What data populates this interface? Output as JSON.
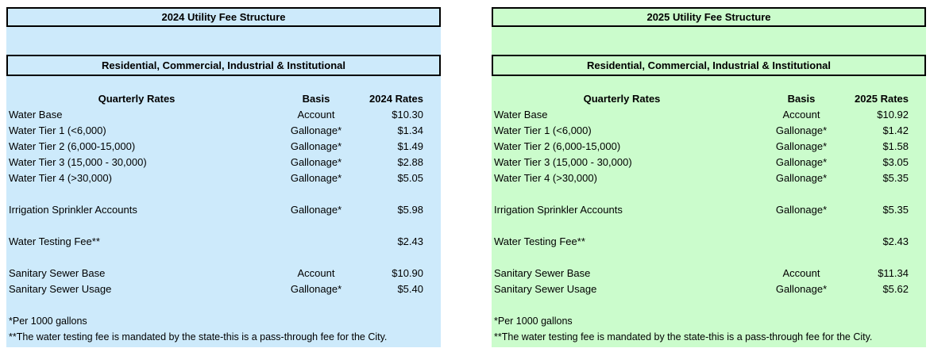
{
  "page": {
    "background_color": "#ffffff",
    "text_color": "#000000",
    "box_border_color": "#000000"
  },
  "tables": [
    {
      "title": "2024 Utility Fee Structure",
      "subtitle": "Residential, Commercial, Industrial & Institutional",
      "bg_color": "#CDEAFB",
      "columns": {
        "quarterly": "Quarterly Rates",
        "basis": "Basis",
        "rates": "2024 Rates"
      },
      "groups": [
        [
          {
            "label": "Water Base",
            "basis": "Account",
            "rate": "$10.30"
          },
          {
            "label": "Water Tier 1 (<6,000)",
            "basis": "Gallonage*",
            "rate": "$1.34"
          },
          {
            "label": "Water Tier 2 (6,000-15,000)",
            "basis": "Gallonage*",
            "rate": "$1.49"
          },
          {
            "label": "Water Tier 3 (15,000 - 30,000)",
            "basis": "Gallonage*",
            "rate": "$2.88"
          },
          {
            "label": "Water Tier 4 (>30,000)",
            "basis": "Gallonage*",
            "rate": "$5.05"
          }
        ],
        [
          {
            "label": "Irrigation Sprinkler Accounts",
            "basis": "Gallonage*",
            "rate": "$5.98"
          }
        ],
        [
          {
            "label": "Water Testing Fee**",
            "basis": "",
            "rate": "$2.43"
          }
        ],
        [
          {
            "label": "Sanitary Sewer Base",
            "basis": "Account",
            "rate": "$10.90"
          },
          {
            "label": "Sanitary Sewer Usage",
            "basis": "Gallonage*",
            "rate": "$5.40"
          }
        ]
      ],
      "footnotes": [
        "*Per 1000 gallons",
        "**The water testing fee is mandated by the state-this is a pass-through fee for the City."
      ]
    },
    {
      "title": "2025 Utility Fee Structure",
      "subtitle": "Residential, Commercial, Industrial & Institutional",
      "bg_color": "#CBFCCC",
      "columns": {
        "quarterly": "Quarterly Rates",
        "basis": "Basis",
        "rates": "2025 Rates"
      },
      "groups": [
        [
          {
            "label": "Water Base",
            "basis": "Account",
            "rate": "$10.92"
          },
          {
            "label": "Water Tier 1 (<6,000)",
            "basis": "Gallonage*",
            "rate": "$1.42"
          },
          {
            "label": "Water Tier 2 (6,000-15,000)",
            "basis": "Gallonage*",
            "rate": "$1.58"
          },
          {
            "label": "Water Tier 3 (15,000 - 30,000)",
            "basis": "Gallonage*",
            "rate": "$3.05"
          },
          {
            "label": "Water Tier 4 (>30,000)",
            "basis": "Gallonage*",
            "rate": "$5.35"
          }
        ],
        [
          {
            "label": "Irrigation Sprinkler Accounts",
            "basis": "Gallonage*",
            "rate": "$5.35"
          }
        ],
        [
          {
            "label": "Water Testing Fee**",
            "basis": "",
            "rate": "$2.43"
          }
        ],
        [
          {
            "label": "Sanitary Sewer Base",
            "basis": "Account",
            "rate": "$11.34"
          },
          {
            "label": "Sanitary Sewer Usage",
            "basis": "Gallonage*",
            "rate": "$5.62"
          }
        ]
      ],
      "footnotes": [
        "*Per 1000 gallons",
        "**The water testing fee is mandated by the state-this is a pass-through fee for the City."
      ]
    }
  ]
}
